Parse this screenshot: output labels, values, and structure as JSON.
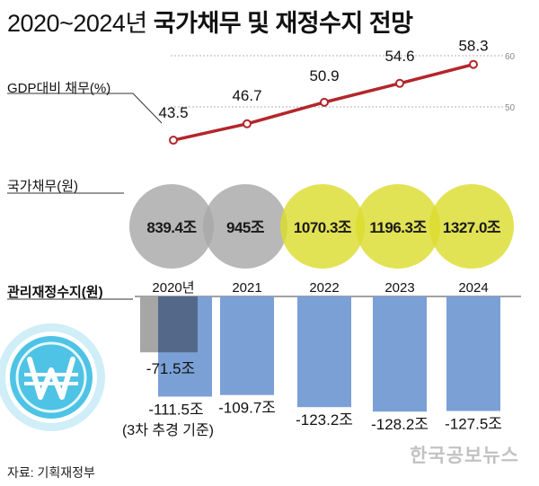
{
  "title": {
    "years": "2020~2024년",
    "main": "국가채무 및 재정수지 전망"
  },
  "sections": {
    "gdp_ratio": "GDP대비 채무(%)",
    "national_debt": "국가채무(원)",
    "fiscal_balance": "관리재정수지(원)"
  },
  "note": "(3차 추경 기준)",
  "source": "자료: 기획재정부",
  "watermark": "한국공보뉴스",
  "colors": {
    "line": "#b3262a",
    "gray_circle": "#a8a8a8",
    "yellow_circle": "#dcdc30",
    "bar": "#7aa0d6",
    "bar_dark": "#4d5f7d",
    "bar_gray": "#a6a6a6",
    "icon_fill": "#4ec3e6"
  },
  "chart_data": [
    {
      "type": "line",
      "ylabel": "GDP대비 채무(%)",
      "x": [
        "2020",
        "2021",
        "2022",
        "2023",
        "2024"
      ],
      "values": [
        43.5,
        46.7,
        50.9,
        54.6,
        58.3
      ],
      "value_labels": [
        "43.5",
        "46.7",
        "50.9",
        "54.6",
        "58.3"
      ],
      "y_ticks": [
        "50",
        "60"
      ],
      "ylim": [
        40,
        60
      ],
      "grid": true
    },
    {
      "type": "bubble",
      "ylabel": "국가채무(원)",
      "x": [
        "2020",
        "2021",
        "2022",
        "2023",
        "2024"
      ],
      "values": [
        839.4,
        945,
        1070.3,
        1196.3,
        1327.0
      ],
      "value_labels": [
        "839.4조",
        "945조",
        "1070.3조",
        "1196.3조",
        "1327.0조"
      ],
      "highlight": [
        false,
        false,
        true,
        true,
        true
      ]
    },
    {
      "type": "bar",
      "ylabel": "관리재정수지(원)",
      "categories": [
        "2020년",
        "2021",
        "2022",
        "2023",
        "2024"
      ],
      "values": [
        -111.5,
        -109.7,
        -123.2,
        -128.2,
        -127.5
      ],
      "value_labels": [
        "-111.5조",
        "-109.7조",
        "-123.2조",
        "-128.2조",
        "-127.5조"
      ],
      "comparison": {
        "category": "2020년",
        "value": -71.5,
        "label": "-71.5조"
      }
    }
  ]
}
